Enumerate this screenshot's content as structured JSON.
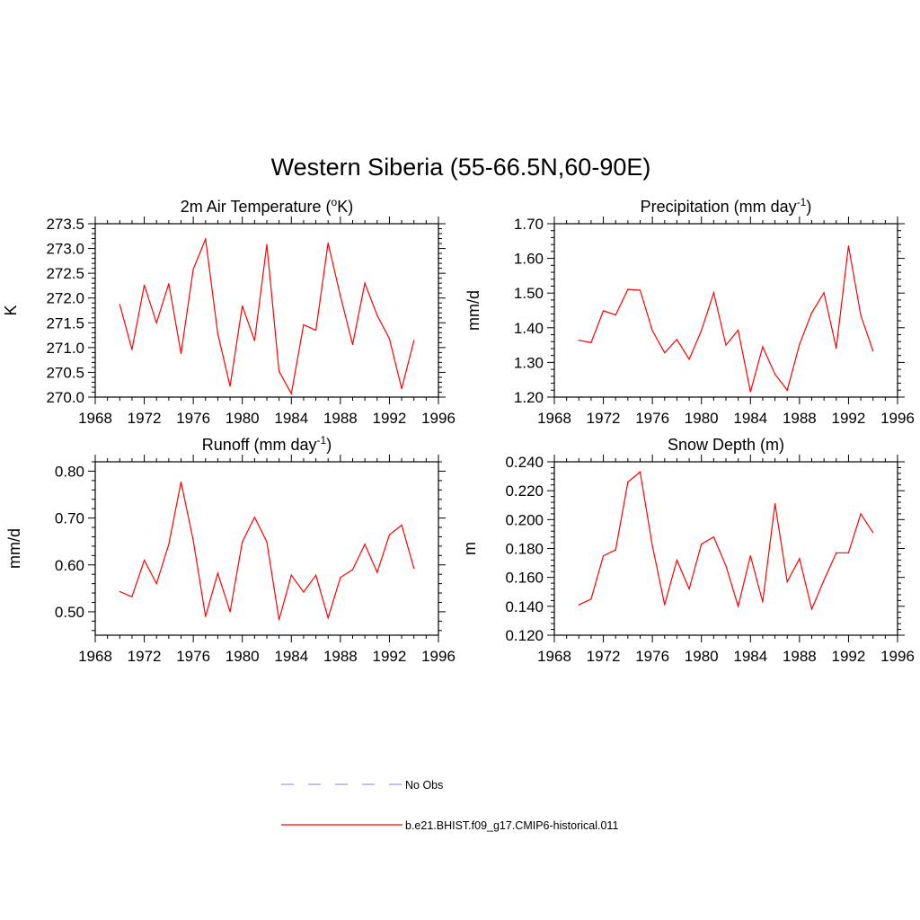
{
  "figure": {
    "title": "Western Siberia (55-66.5N,60-90E)"
  },
  "legend": {
    "items": [
      {
        "label": "No Obs",
        "color": "#9999ff",
        "dash": true
      },
      {
        "label": "b.e21.BHIST.f09_g17.CMIP6-historical.011",
        "color": "#ff0000",
        "dash": false
      }
    ]
  },
  "chart_data": [
    {
      "type": "line",
      "title": "2m Air Temperature (oK)",
      "title_parts": {
        "pre": "2m Air Temperature (",
        "sup": "o",
        "post": "K)"
      },
      "ylabel": "K",
      "xlim": [
        1968,
        1996
      ],
      "ylim": [
        270.0,
        273.5
      ],
      "xticks": [
        1968,
        1972,
        1976,
        1980,
        1984,
        1988,
        1992,
        1996
      ],
      "yticks": [
        270.0,
        270.5,
        271.0,
        271.5,
        272.0,
        272.5,
        273.0,
        273.5
      ],
      "ytick_labels": [
        "270.0",
        "270.5",
        "271.0",
        "271.5",
        "272.0",
        "272.5",
        "273.0",
        "273.5"
      ],
      "x": [
        1970,
        1971,
        1972,
        1973,
        1974,
        1975,
        1976,
        1977,
        1978,
        1979,
        1980,
        1981,
        1982,
        1983,
        1984,
        1985,
        1986,
        1987,
        1988,
        1989,
        1990,
        1991,
        1992,
        1993,
        1994
      ],
      "series": [
        {
          "color": "#ff0000",
          "values": [
            271.87,
            270.96,
            272.26,
            271.5,
            272.29,
            270.88,
            272.58,
            273.19,
            271.28,
            270.22,
            271.84,
            271.14,
            273.08,
            270.52,
            270.07,
            271.46,
            271.35,
            273.11,
            272.04,
            271.06,
            272.3,
            271.65,
            271.18,
            270.17,
            271.14
          ]
        }
      ]
    },
    {
      "type": "line",
      "title": "Precipitation (mm day-1)",
      "title_parts": {
        "pre": "Precipitation (mm day",
        "sup": "-1",
        "post": ")"
      },
      "ylabel": "mm/d",
      "xlim": [
        1968,
        1996
      ],
      "ylim": [
        1.2,
        1.7
      ],
      "xticks": [
        1968,
        1972,
        1976,
        1980,
        1984,
        1988,
        1992,
        1996
      ],
      "yticks": [
        1.2,
        1.3,
        1.4,
        1.5,
        1.6,
        1.7
      ],
      "ytick_labels": [
        "1.20",
        "1.30",
        "1.40",
        "1.50",
        "1.60",
        "1.70"
      ],
      "x": [
        1970,
        1971,
        1972,
        1973,
        1974,
        1975,
        1976,
        1977,
        1978,
        1979,
        1980,
        1981,
        1982,
        1983,
        1984,
        1985,
        1986,
        1987,
        1988,
        1989,
        1990,
        1991,
        1992,
        1993,
        1994
      ],
      "series": [
        {
          "color": "#ff0000",
          "values": [
            1.364,
            1.357,
            1.449,
            1.437,
            1.511,
            1.508,
            1.392,
            1.328,
            1.366,
            1.309,
            1.392,
            1.501,
            1.35,
            1.393,
            1.215,
            1.345,
            1.266,
            1.22,
            1.352,
            1.443,
            1.501,
            1.341,
            1.636,
            1.436,
            1.333
          ]
        }
      ]
    },
    {
      "type": "line",
      "title": "Runoff (mm day-1)",
      "title_parts": {
        "pre": "Runoff (mm day",
        "sup": "-1",
        "post": ")"
      },
      "ylabel": "mm/d",
      "xlim": [
        1968,
        1996
      ],
      "ylim": [
        0.45,
        0.82
      ],
      "xticks": [
        1968,
        1972,
        1976,
        1980,
        1984,
        1988,
        1992,
        1996
      ],
      "yticks": [
        0.5,
        0.6,
        0.7,
        0.8
      ],
      "ytick_labels": [
        "0.50",
        "0.60",
        "0.70",
        "0.80"
      ],
      "x": [
        1970,
        1971,
        1972,
        1973,
        1974,
        1975,
        1976,
        1977,
        1978,
        1979,
        1980,
        1981,
        1982,
        1983,
        1984,
        1985,
        1986,
        1987,
        1988,
        1989,
        1990,
        1991,
        1992,
        1993,
        1994
      ],
      "series": [
        {
          "color": "#ff0000",
          "values": [
            0.543,
            0.532,
            0.61,
            0.56,
            0.644,
            0.777,
            0.652,
            0.49,
            0.582,
            0.5,
            0.649,
            0.702,
            0.649,
            0.483,
            0.578,
            0.542,
            0.578,
            0.487,
            0.573,
            0.59,
            0.644,
            0.584,
            0.664,
            0.685,
            0.593
          ]
        }
      ]
    },
    {
      "type": "line",
      "title": "Snow Depth (m)",
      "title_parts": {
        "pre": "Snow Depth (m)",
        "sup": "",
        "post": ""
      },
      "ylabel": "m",
      "xlim": [
        1968,
        1996
      ],
      "ylim": [
        0.12,
        0.24
      ],
      "xticks": [
        1968,
        1972,
        1976,
        1980,
        1984,
        1988,
        1992,
        1996
      ],
      "yticks": [
        0.12,
        0.14,
        0.16,
        0.18,
        0.2,
        0.22,
        0.24
      ],
      "ytick_labels": [
        "0.120",
        "0.140",
        "0.160",
        "0.180",
        "0.200",
        "0.220",
        "0.240"
      ],
      "x": [
        1970,
        1971,
        1972,
        1973,
        1974,
        1975,
        1976,
        1977,
        1978,
        1979,
        1980,
        1981,
        1982,
        1983,
        1984,
        1985,
        1986,
        1987,
        1988,
        1989,
        1990,
        1991,
        1992,
        1993,
        1994
      ],
      "series": [
        {
          "color": "#ff0000",
          "values": [
            0.141,
            0.145,
            0.175,
            0.179,
            0.226,
            0.233,
            0.182,
            0.141,
            0.172,
            0.152,
            0.183,
            0.188,
            0.168,
            0.14,
            0.175,
            0.143,
            0.211,
            0.157,
            0.173,
            0.138,
            0.158,
            0.177,
            0.177,
            0.204,
            0.191
          ]
        }
      ]
    }
  ]
}
